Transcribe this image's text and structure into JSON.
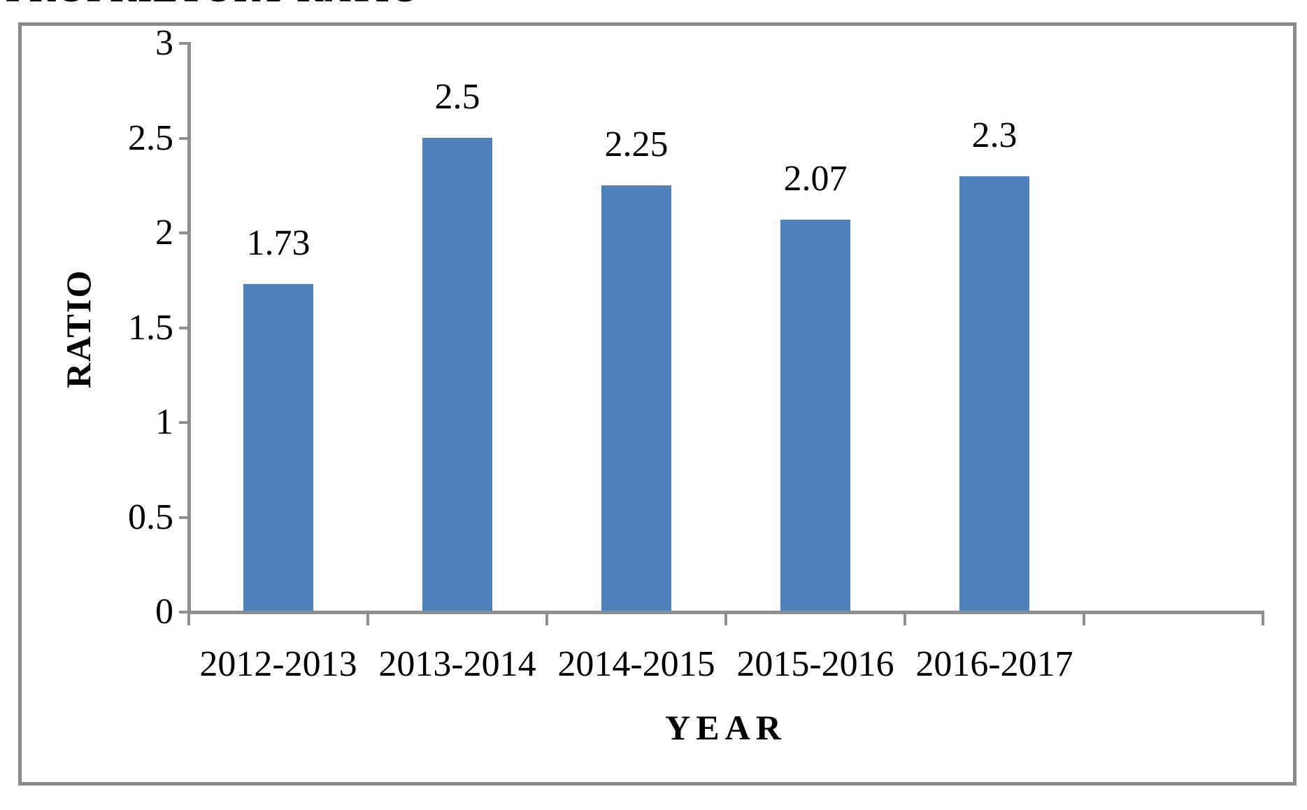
{
  "title": "PROPRIETORY RATIO",
  "colors": {
    "bar": "#4F81BD",
    "axis": "#8e8e8e",
    "border": "#8a8a8a",
    "text": "#000000",
    "background": "#ffffff"
  },
  "chart_data": {
    "type": "bar",
    "title": "PROPRIETORY RATIO",
    "categories": [
      "2012-2013",
      "2013-2014",
      "2014-2015",
      "2015-2016",
      "2016-2017"
    ],
    "values": [
      1.73,
      2.5,
      2.25,
      2.07,
      2.3
    ],
    "data_labels": [
      "1.73",
      "2.5",
      "2.25",
      "2.07",
      "2.3"
    ],
    "xlabel": "YEAR",
    "ylabel": "RATIO",
    "ylim": [
      0,
      3
    ],
    "ytick_step": 0.5,
    "ytick_labels": [
      "0",
      "0.5",
      "1",
      "1.5",
      "2",
      "2.5",
      "3"
    ],
    "grid": false,
    "legend_position": "none",
    "bar_color": "#4F81BD",
    "empty_trailing_slots": 1
  }
}
